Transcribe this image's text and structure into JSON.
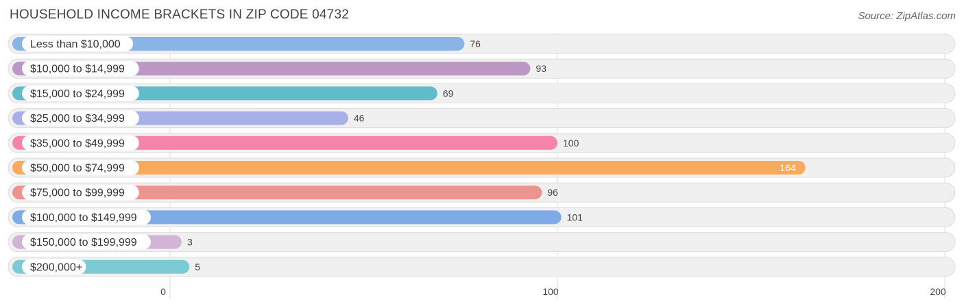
{
  "header": {
    "title": "HOUSEHOLD INCOME BRACKETS IN ZIP CODE 04732",
    "source": "Source: ZipAtlas.com"
  },
  "chart_data": {
    "type": "bar",
    "orientation": "horizontal",
    "title": "HOUSEHOLD INCOME BRACKETS IN ZIP CODE 04732",
    "xlabel": "",
    "ylabel": "",
    "xlim": [
      0,
      200
    ],
    "xticks": [
      0,
      100,
      200
    ],
    "grid": true,
    "categories": [
      "Less than $10,000",
      "$10,000 to $14,999",
      "$15,000 to $24,999",
      "$25,000 to $34,999",
      "$35,000 to $49,999",
      "$50,000 to $74,999",
      "$75,000 to $99,999",
      "$100,000 to $149,999",
      "$150,000 to $199,999",
      "$200,000+"
    ],
    "values": [
      76,
      93,
      69,
      46,
      100,
      164,
      96,
      101,
      3,
      5
    ],
    "colors": [
      "#8ab4e6",
      "#bc96c4",
      "#5fbcc8",
      "#a9b0e8",
      "#f584a8",
      "#f8aa5e",
      "#eb9490",
      "#7eaae6",
      "#d2b4d6",
      "#7ccad4"
    ]
  }
}
